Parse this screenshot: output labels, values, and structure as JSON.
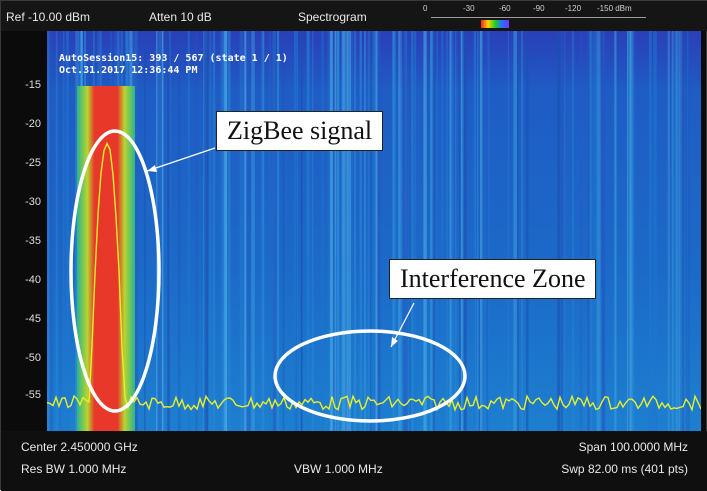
{
  "header": {
    "ref": "Ref -10.00 dBm",
    "atten": "Atten 10 dB",
    "mode": "Spectrogram",
    "scale_labels": [
      "0",
      "-30",
      "-60",
      "-90",
      "-120",
      "-150 dBm"
    ]
  },
  "session": {
    "line1": "AutoSession15: 393 / 567 (state 1 / 1)",
    "line2": "Oct.31.2017 12:36:44 PM"
  },
  "y_axis": {
    "ticks": [
      "-15",
      "-20",
      "-25",
      "-30",
      "-35",
      "-40",
      "-45",
      "-50",
      "-55"
    ]
  },
  "annotations": {
    "zigbee": "ZigBee signal",
    "interference": "Interference Zone"
  },
  "footer": {
    "center": "Center 2.450000 GHz",
    "span": "Span 100.0000 MHz",
    "res_bw": "Res BW 1.000 MHz",
    "vbw": "VBW 1.000 MHz",
    "sweep": "Swp 82.00 ms (401 pts)"
  },
  "colors": {
    "background": "#1c61c2",
    "signal": "#e8382a",
    "trace": "#e6ef2a",
    "ellipse": "#ffffff"
  }
}
